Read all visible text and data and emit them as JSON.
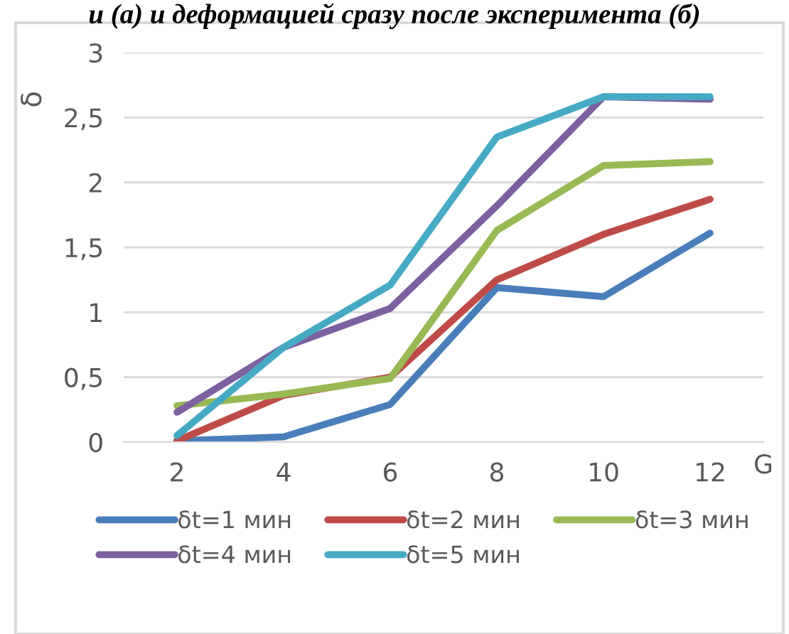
{
  "chart_data": {
    "type": "line",
    "title": "и (а) и деформацией сразу после эксперимента (б)",
    "xlabel": "G",
    "ylabel": "δ",
    "categories": [
      "2",
      "4",
      "6",
      "8",
      "10",
      "12"
    ],
    "series": [
      {
        "name": "δt=1 мин",
        "color": "#4a7ebb",
        "values": [
          0.01,
          0.04,
          0.29,
          1.19,
          1.12,
          1.61
        ]
      },
      {
        "name": "δt=2 мин",
        "color": "#be4b48",
        "values": [
          0.01,
          0.36,
          0.5,
          1.25,
          1.6,
          1.87
        ]
      },
      {
        "name": "δt=3 мин",
        "color": "#98b954",
        "values": [
          0.28,
          0.37,
          0.49,
          1.63,
          2.13,
          2.16
        ]
      },
      {
        "name": "δt=4 мин",
        "color": "#7d60a0",
        "values": [
          0.23,
          0.73,
          1.03,
          1.82,
          2.66,
          2.64
        ]
      },
      {
        "name": "δt=5 мин",
        "color": "#46aac5",
        "values": [
          0.05,
          0.73,
          1.21,
          2.35,
          2.66,
          2.66
        ]
      }
    ],
    "ylim": [
      0,
      3
    ],
    "yticks": [
      0,
      {
        "value": 0.5,
        "label": "0,5"
      },
      1,
      {
        "value": 1.5,
        "label": "1,5"
      },
      2,
      {
        "value": 2.5,
        "label": "2,5"
      },
      3
    ],
    "grid": "y",
    "legend": "bottom",
    "marker": "none",
    "line_style": "solid"
  }
}
